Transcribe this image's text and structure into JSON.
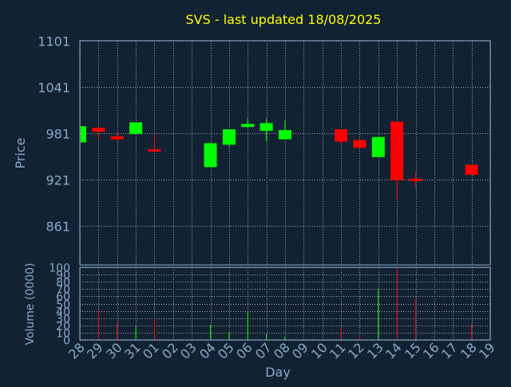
{
  "chart_data": {
    "type": "candlestick",
    "title": "SVS - last updated 18/08/2025",
    "xlabel": "Day",
    "price_axis": {
      "label": "Price",
      "ticks": [
        1101,
        1041,
        981,
        921,
        861
      ],
      "range": [
        810,
        1101
      ]
    },
    "volume_axis": {
      "label": "Volume (0000)",
      "ticks": [
        0,
        10,
        20,
        30,
        40,
        50,
        60,
        70,
        80,
        90,
        100
      ],
      "range": [
        0,
        100
      ]
    },
    "days": [
      "28",
      "29",
      "30",
      "31",
      "01",
      "02",
      "03",
      "04",
      "05",
      "06",
      "07",
      "08",
      "09",
      "10",
      "11",
      "12",
      "13",
      "14",
      "15",
      "16",
      "17",
      "18",
      "19"
    ],
    "candles": [
      {
        "day": "28",
        "open": 969,
        "close": 990,
        "high": 990,
        "low": 969,
        "volume": 0
      },
      {
        "day": "29",
        "open": 988,
        "close": 983,
        "high": 990,
        "low": 973,
        "volume": 42
      },
      {
        "day": "30",
        "open": 977,
        "close": 973,
        "high": 982,
        "low": 970,
        "volume": 23
      },
      {
        "day": "31",
        "open": 980,
        "close": 995,
        "high": 995,
        "low": 979,
        "volume": 18
      },
      {
        "day": "01",
        "open": 960,
        "close": 957,
        "high": 980,
        "low": 957,
        "volume": 30
      },
      {
        "day": "02",
        "open": null,
        "close": null,
        "high": null,
        "low": null,
        "volume": 0
      },
      {
        "day": "03",
        "open": null,
        "close": null,
        "high": null,
        "low": null,
        "volume": 0
      },
      {
        "day": "04",
        "open": 937,
        "close": 968,
        "high": 968,
        "low": 937,
        "volume": 20
      },
      {
        "day": "05",
        "open": 966,
        "close": 986,
        "high": 986,
        "low": 964,
        "volume": 10
      },
      {
        "day": "06",
        "open": 989,
        "close": 993,
        "high": 1000,
        "low": 989,
        "volume": 38
      },
      {
        "day": "07",
        "open": 984,
        "close": 994,
        "high": 1000,
        "low": 971,
        "volume": 8
      },
      {
        "day": "08",
        "open": 973,
        "close": 985,
        "high": 997,
        "low": 973,
        "volume": 5
      },
      {
        "day": "09",
        "open": null,
        "close": null,
        "high": null,
        "low": null,
        "volume": 0
      },
      {
        "day": "10",
        "open": null,
        "close": null,
        "high": null,
        "low": null,
        "volume": 0
      },
      {
        "day": "11",
        "open": 986,
        "close": 970,
        "high": 986,
        "low": 966,
        "volume": 17
      },
      {
        "day": "12",
        "open": 972,
        "close": 962,
        "high": 975,
        "low": 962,
        "volume": 5
      },
      {
        "day": "13",
        "open": 950,
        "close": 976,
        "high": 976,
        "low": 950,
        "volume": 70
      },
      {
        "day": "14",
        "open": 996,
        "close": 920,
        "high": 996,
        "low": 895,
        "volume": 100
      },
      {
        "day": "15",
        "open": 922,
        "close": 919,
        "high": 931,
        "low": 911,
        "volume": 56
      },
      {
        "day": "16",
        "open": null,
        "close": null,
        "high": null,
        "low": null,
        "volume": 0
      },
      {
        "day": "17",
        "open": null,
        "close": null,
        "high": null,
        "low": null,
        "volume": 0
      },
      {
        "day": "18",
        "open": 940,
        "close": 927,
        "high": 940,
        "low": 927,
        "volume": 22
      },
      {
        "day": "19",
        "open": null,
        "close": null,
        "high": null,
        "low": null,
        "volume": 0
      }
    ],
    "colors": {
      "background": "#112233",
      "up": "#00ff00",
      "down": "#ff0000",
      "grid": "#aaaaaa",
      "axis_text": "#88aacc",
      "title": "#ffff00",
      "plot_border": "#88aacc"
    },
    "grid": true
  }
}
